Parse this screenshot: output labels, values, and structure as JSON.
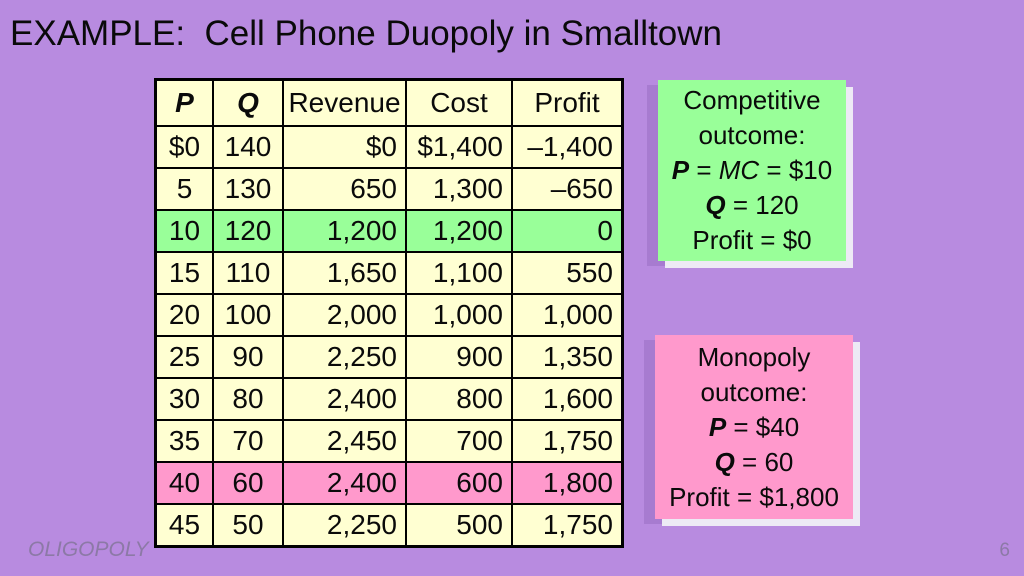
{
  "slide": {
    "title": "EXAMPLE:  Cell Phone Duopoly in Smalltown",
    "footer_text": "OLIGOPOLY",
    "page_number": "6"
  },
  "colors": {
    "background": "#B88BE0",
    "table_background": "#FFFFD2",
    "competitive_highlight_green": "#99FF99",
    "monopoly_highlight_pink": "#FF99CC",
    "shadow_light": "#EDEAF5",
    "shadow_dark": "#A77BD0",
    "muted_text": "#8C79A6"
  },
  "table": {
    "columns": [
      {
        "label": "P",
        "style": "var"
      },
      {
        "label": "Q",
        "style": "var"
      },
      {
        "label": "Revenue",
        "style": "plain"
      },
      {
        "label": "Cost",
        "style": "plain"
      },
      {
        "label": "Profit",
        "style": "plain"
      }
    ],
    "rows": [
      {
        "highlight": "none",
        "cells": [
          "$0",
          "140",
          "$0",
          "$1,400",
          "–1,400"
        ]
      },
      {
        "highlight": "none",
        "cells": [
          "5",
          "130",
          "650",
          "1,300",
          "–650"
        ]
      },
      {
        "highlight": "green",
        "cells": [
          "10",
          "120",
          "1,200",
          "1,200",
          "0"
        ]
      },
      {
        "highlight": "none",
        "cells": [
          "15",
          "110",
          "1,650",
          "1,100",
          "550"
        ]
      },
      {
        "highlight": "none",
        "cells": [
          "20",
          "100",
          "2,000",
          "1,000",
          "1,000"
        ]
      },
      {
        "highlight": "none",
        "cells": [
          "25",
          "90",
          "2,250",
          "900",
          "1,350"
        ]
      },
      {
        "highlight": "none",
        "cells": [
          "30",
          "80",
          "2,400",
          "800",
          "1,600"
        ]
      },
      {
        "highlight": "none",
        "cells": [
          "35",
          "70",
          "2,450",
          "700",
          "1,750"
        ]
      },
      {
        "highlight": "pink",
        "cells": [
          "40",
          "60",
          "2,400",
          "600",
          "1,800"
        ]
      },
      {
        "highlight": "none",
        "cells": [
          "45",
          "50",
          "2,250",
          "500",
          "1,750"
        ]
      }
    ]
  },
  "competitive_box": {
    "heading_lines": [
      "Competitive",
      "outcome:"
    ],
    "lines": [
      {
        "parts": [
          {
            "text": "P",
            "style": "bold-italic"
          },
          {
            "text": " = ",
            "style": "plain"
          },
          {
            "text": "MC",
            "style": "italic"
          },
          {
            "text": " = $10",
            "style": "plain"
          }
        ]
      },
      {
        "parts": [
          {
            "text": "Q",
            "style": "bold-italic"
          },
          {
            "text": " = 120",
            "style": "plain"
          }
        ]
      },
      {
        "parts": [
          {
            "text": "Profit = $0",
            "style": "plain"
          }
        ]
      }
    ]
  },
  "monopoly_box": {
    "heading_lines": [
      "Monopoly",
      "outcome:"
    ],
    "lines": [
      {
        "parts": [
          {
            "text": "P",
            "style": "bold-italic"
          },
          {
            "text": " = $40",
            "style": "plain"
          }
        ]
      },
      {
        "parts": [
          {
            "text": "Q",
            "style": "bold-italic"
          },
          {
            "text": " = 60",
            "style": "plain"
          }
        ]
      },
      {
        "parts": [
          {
            "text": "Profit = $1,800",
            "style": "plain"
          }
        ]
      }
    ]
  }
}
